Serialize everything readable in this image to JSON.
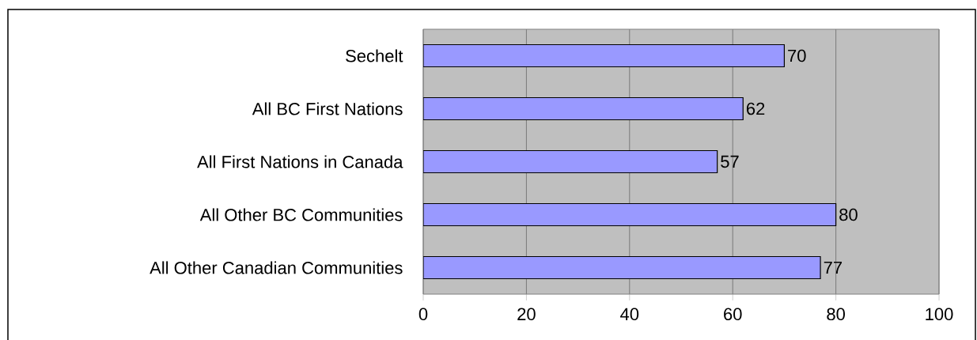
{
  "chart_data": {
    "type": "bar",
    "orientation": "horizontal",
    "categories": [
      "Sechelt",
      "All BC First Nations",
      "All First Nations in Canada",
      "All Other BC Communities",
      "All Other Canadian Communities"
    ],
    "values": [
      70,
      62,
      57,
      80,
      77
    ],
    "color": "#9999ff",
    "xlim": [
      0,
      100
    ],
    "xticks": [
      0,
      20,
      40,
      60,
      80,
      100
    ],
    "grid": "x",
    "data_labels": true
  }
}
